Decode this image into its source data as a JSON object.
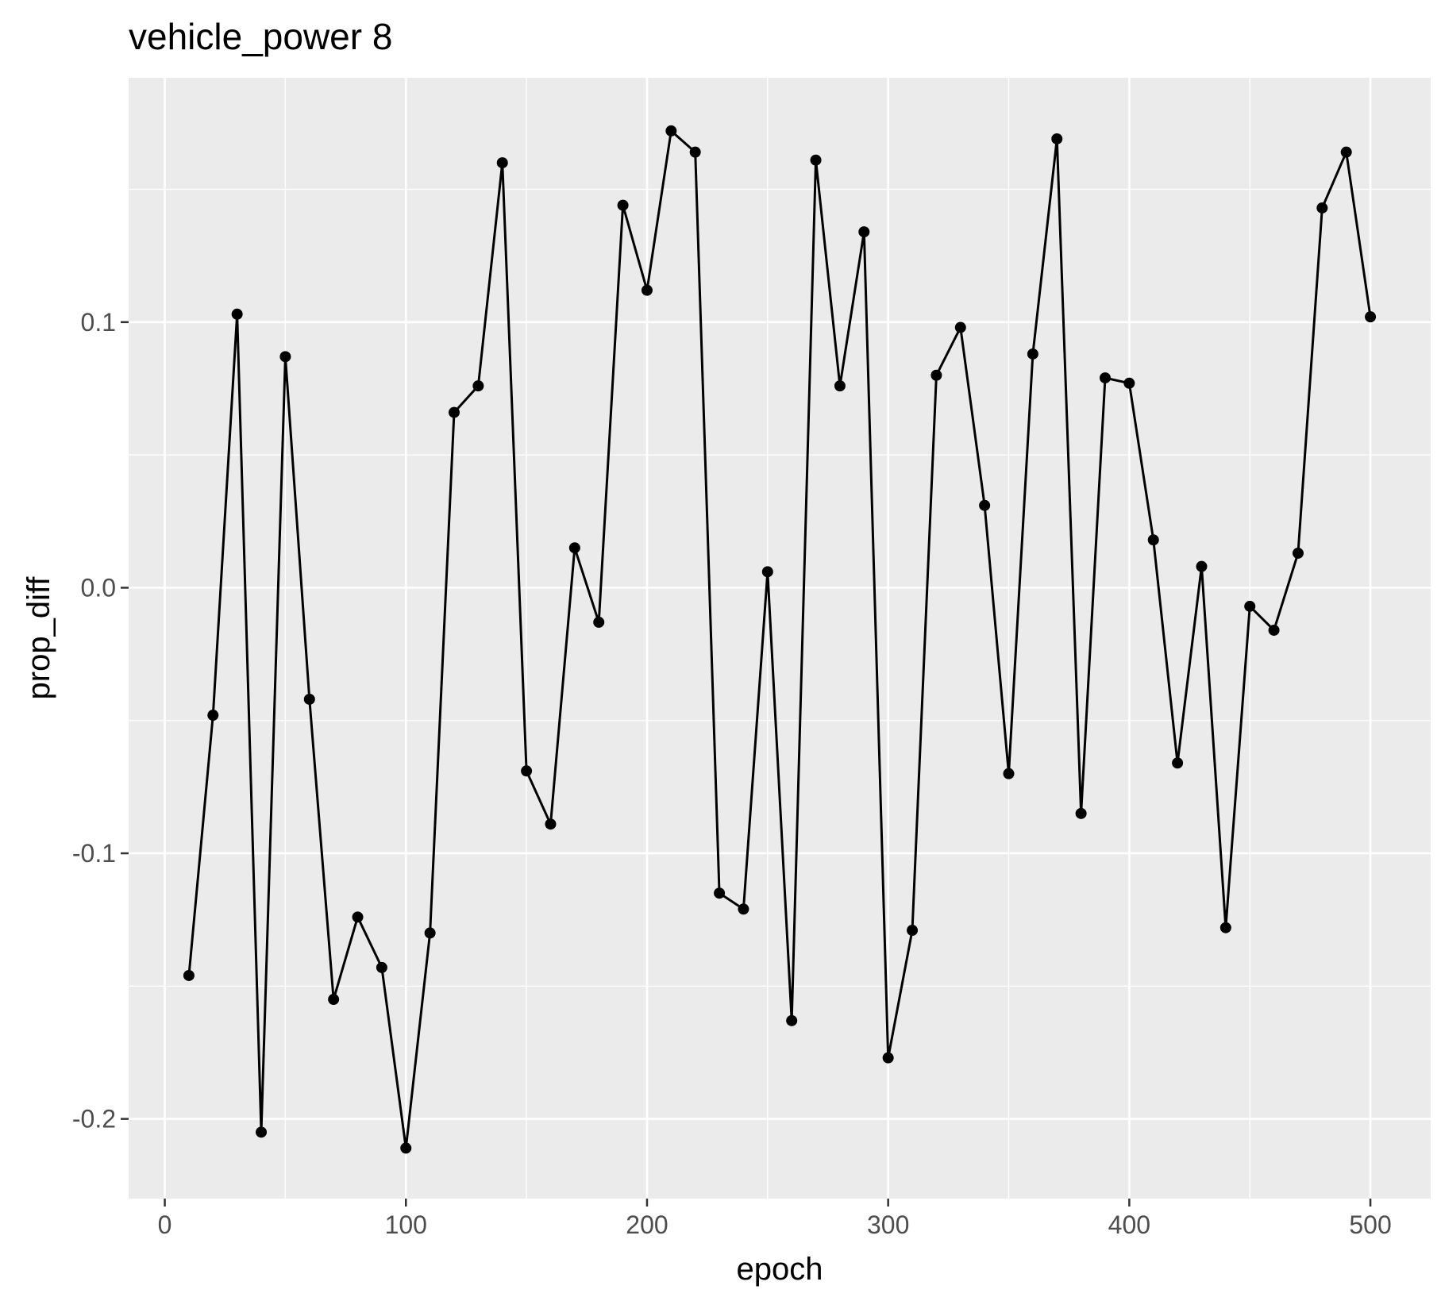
{
  "chart_data": {
    "type": "line",
    "title": "vehicle_power 8",
    "xlabel": "epoch",
    "ylabel": "prop_diff",
    "xlim": [
      -15,
      525
    ],
    "ylim": [
      -0.23,
      0.192
    ],
    "x_ticks": [
      0,
      100,
      200,
      300,
      400,
      500
    ],
    "x_tick_labels": [
      "0",
      "100",
      "200",
      "300",
      "400",
      "500"
    ],
    "y_ticks": [
      -0.2,
      -0.1,
      0.0,
      0.1
    ],
    "y_tick_labels": [
      "-0.2",
      "-0.1",
      "0.0",
      "0.1"
    ],
    "grid": true,
    "markers": true,
    "legend": "none",
    "series": [
      {
        "color": "#000000",
        "x": [
          10,
          20,
          30,
          40,
          50,
          60,
          70,
          80,
          90,
          100,
          110,
          120,
          130,
          140,
          150,
          160,
          170,
          180,
          190,
          200,
          210,
          220,
          230,
          240,
          250,
          260,
          270,
          280,
          290,
          300,
          310,
          320,
          330,
          340,
          350,
          360,
          370,
          380,
          390,
          400,
          410,
          420,
          430,
          440,
          450,
          460,
          470,
          480,
          490,
          500
        ],
        "values": [
          -0.146,
          -0.048,
          0.103,
          -0.205,
          0.087,
          -0.042,
          -0.155,
          -0.124,
          -0.143,
          -0.211,
          -0.13,
          0.066,
          0.076,
          0.16,
          -0.069,
          -0.089,
          0.015,
          -0.013,
          0.144,
          0.112,
          0.172,
          0.164,
          -0.115,
          -0.121,
          0.006,
          -0.163,
          0.161,
          0.076,
          0.134,
          -0.177,
          -0.129,
          0.08,
          0.098,
          0.031,
          -0.07,
          0.088,
          0.169,
          -0.085,
          0.079,
          0.077,
          0.018,
          -0.066,
          0.008,
          -0.128,
          -0.007,
          -0.016,
          0.013,
          0.143,
          0.164,
          0.102
        ]
      }
    ]
  }
}
